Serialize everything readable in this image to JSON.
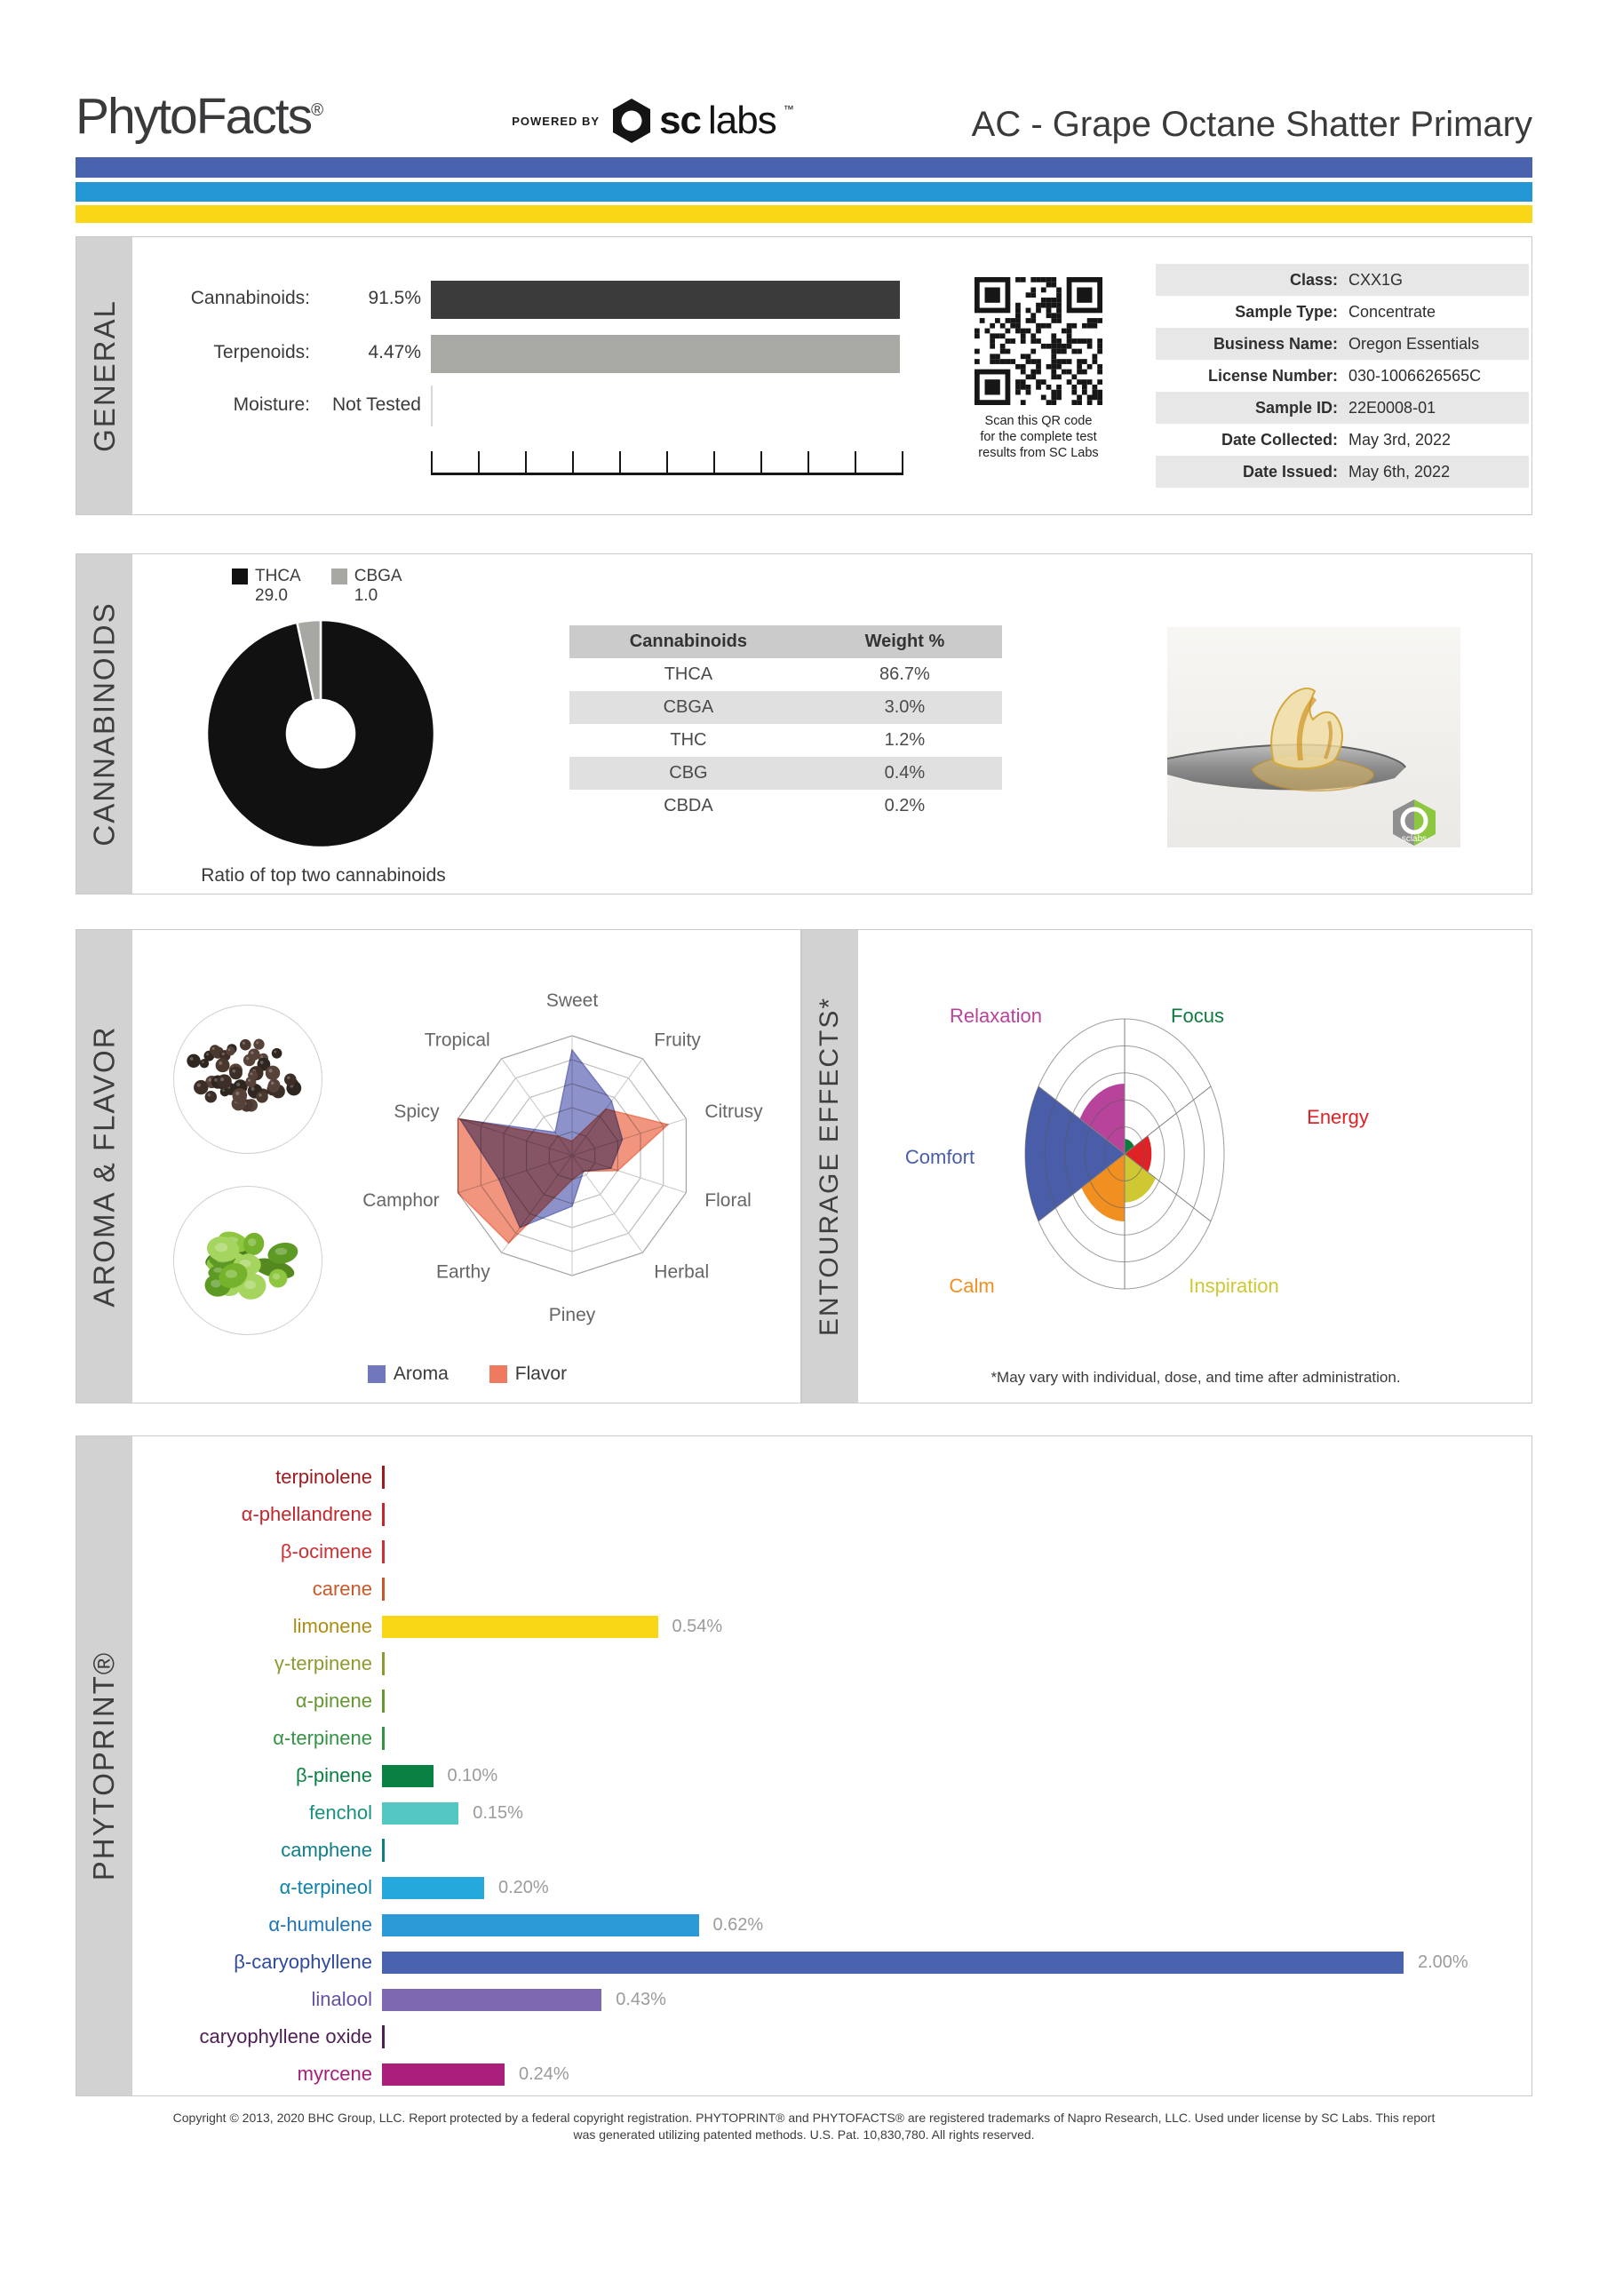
{
  "header": {
    "brand": "PhytoFacts",
    "brand_reg": "®",
    "powered_by": "POWERED BY",
    "lab_bold": "sc",
    "lab_light": "labs",
    "lab_tm": "™",
    "title": "AC - Grape Octane Shatter Primary"
  },
  "stripes": [
    "#4a63ae",
    "#2397d4",
    "#f9d616"
  ],
  "general": {
    "section_label": "GENERAL",
    "rows": [
      {
        "label": "Cannabinoids:",
        "value": "91.5%",
        "bar_color": "#3b3b3b"
      },
      {
        "label": "Terpenoids:",
        "value": "4.47%",
        "bar_color": "#a8a8a5"
      },
      {
        "label": "Moisture:",
        "value": "Not Tested",
        "bar_color": null
      }
    ],
    "qr_caption": [
      "Scan this QR code",
      "for the complete test",
      "results from SC Labs"
    ],
    "info": [
      {
        "label": "Class:",
        "value": "CXX1G"
      },
      {
        "label": "Sample Type:",
        "value": "Concentrate"
      },
      {
        "label": "Business Name:",
        "value": "Oregon Essentials"
      },
      {
        "label": "License Number:",
        "value": "030-1006626565C"
      },
      {
        "label": "Sample ID:",
        "value": "22E0008-01"
      },
      {
        "label": "Date Collected:",
        "value": "May 3rd, 2022"
      },
      {
        "label": "Date Issued:",
        "value": "May 6th, 2022"
      }
    ]
  },
  "cannabinoids": {
    "section_label": "CANNABINOIDS",
    "table": {
      "headers": [
        "Cannabinoids",
        "Weight %"
      ],
      "rows": [
        [
          "THCA",
          "86.7%"
        ],
        [
          "CBGA",
          "3.0%"
        ],
        [
          "THC",
          "1.2%"
        ],
        [
          "CBG",
          "0.4%"
        ],
        [
          "CBDA",
          "0.2%"
        ]
      ]
    }
  },
  "aroma": {
    "section_label": "AROMA & FLAVOR"
  },
  "entourage": {
    "section_label": "ENTOURAGE EFFECTS*",
    "footnote": "*May vary with individual, dose, and time after administration."
  },
  "phytoprint": {
    "section_label": "PHYTOPRINT®"
  },
  "footer": {
    "line1": "Copyright © 2013, 2020 BHC Group, LLC. Report protected by a federal copyright registration. PHYTOPRINT® and PHYTOFACTS® are registered trademarks of Napro Research, LLC. Used under license by SC Labs. This report",
    "line2": "was generated utilizing patented methods. U.S. Pat. 10,830,780. All rights reserved."
  },
  "chart_data": [
    {
      "id": "cannabinoid_ratio_donut",
      "type": "pie",
      "title": "Ratio of top two cannabinoids",
      "labels": [
        "THCA",
        "CBGA"
      ],
      "values": [
        29.0,
        1.0
      ],
      "value_labels": [
        "29.0",
        "1.0"
      ],
      "colors": [
        "#111111",
        "#a7a7a4"
      ],
      "donut": true
    },
    {
      "id": "aroma_flavor_radar",
      "type": "radar",
      "categories": [
        "Sweet",
        "Fruity",
        "Citrusy",
        "Floral",
        "Herbal",
        "Piney",
        "Earthy",
        "Camphor",
        "Spicy",
        "Tropical"
      ],
      "scale_max": 5,
      "rings": 5,
      "legend_position": "bottom",
      "series": [
        {
          "name": "Aroma",
          "color": "#7177bd",
          "values": [
            4.4,
            2.8,
            2.2,
            1.7,
            0.8,
            2.1,
            3.7,
            3.2,
            4.9,
            1.2
          ]
        },
        {
          "name": "Flavor",
          "color": "#ee7a5f",
          "values": [
            0.6,
            2.4,
            4.2,
            2.0,
            0.8,
            1.0,
            4.5,
            5.0,
            5.0,
            1.0
          ]
        }
      ]
    },
    {
      "id": "entourage_polar",
      "type": "polar_area",
      "categories": [
        "Relaxation",
        "Focus",
        "Energy",
        "Inspiration",
        "Calm",
        "Comfort"
      ],
      "values": [
        2.6,
        0.55,
        1.35,
        1.8,
        2.5,
        5.0
      ],
      "colors": [
        "#b8439b",
        "#0e7b3d",
        "#e02125",
        "#d0c832",
        "#f19021",
        "#4a5da8"
      ],
      "sector_angles": [
        [
          90,
          150
        ],
        [
          30,
          90
        ],
        [
          -30,
          30
        ],
        [
          -90,
          -30
        ],
        [
          -150,
          -90
        ],
        [
          150,
          210
        ]
      ],
      "scale_max": 5,
      "rings": 5
    },
    {
      "id": "phytoprint_terpenes",
      "type": "bar",
      "orientation": "horizontal",
      "categories": [
        "terpinolene",
        "α-phellandrene",
        "β-ocimene",
        "carene",
        "limonene",
        "γ-terpinene",
        "α-pinene",
        "α-terpinene",
        "β-pinene",
        "fenchol",
        "camphene",
        "α-terpineol",
        "α-humulene",
        "β-caryophyllene",
        "linalool",
        "caryophyllene oxide",
        "myrcene"
      ],
      "values": [
        0,
        0,
        0,
        0,
        0.54,
        0,
        0,
        0,
        0.1,
        0.15,
        0,
        0.2,
        0.62,
        2.0,
        0.43,
        0,
        0.24
      ],
      "value_labels": [
        "",
        "",
        "",
        "",
        "0.54%",
        "",
        "",
        "",
        "0.10%",
        "0.15%",
        "",
        "0.20%",
        "0.62%",
        "2.00%",
        "0.43%",
        "",
        "0.24%"
      ],
      "bar_colors": [
        "#9e1a1d",
        "#c1272d",
        "#cd2f33",
        "#c9582a",
        "#f9d616",
        "#90992f",
        "#64982f",
        "#349344",
        "#0b8043",
        "#55c7c3",
        "#0f7f87",
        "#25a8dc",
        "#2b9ad6",
        "#4a63ae",
        "#7e68b2",
        "#4f1e56",
        "#aa1f79"
      ],
      "label_colors": [
        "#9e1a1d",
        "#c1272d",
        "#cd2f33",
        "#c9582a",
        "#ad8d15",
        "#90992f",
        "#64982f",
        "#349344",
        "#0b8043",
        "#199180",
        "#0f7f87",
        "#0f82ab",
        "#2075b5",
        "#2f4a9e",
        "#6751a5",
        "#4f1e56",
        "#a51e79"
      ],
      "unit": "%",
      "xlim": [
        0,
        2.08
      ]
    }
  ]
}
